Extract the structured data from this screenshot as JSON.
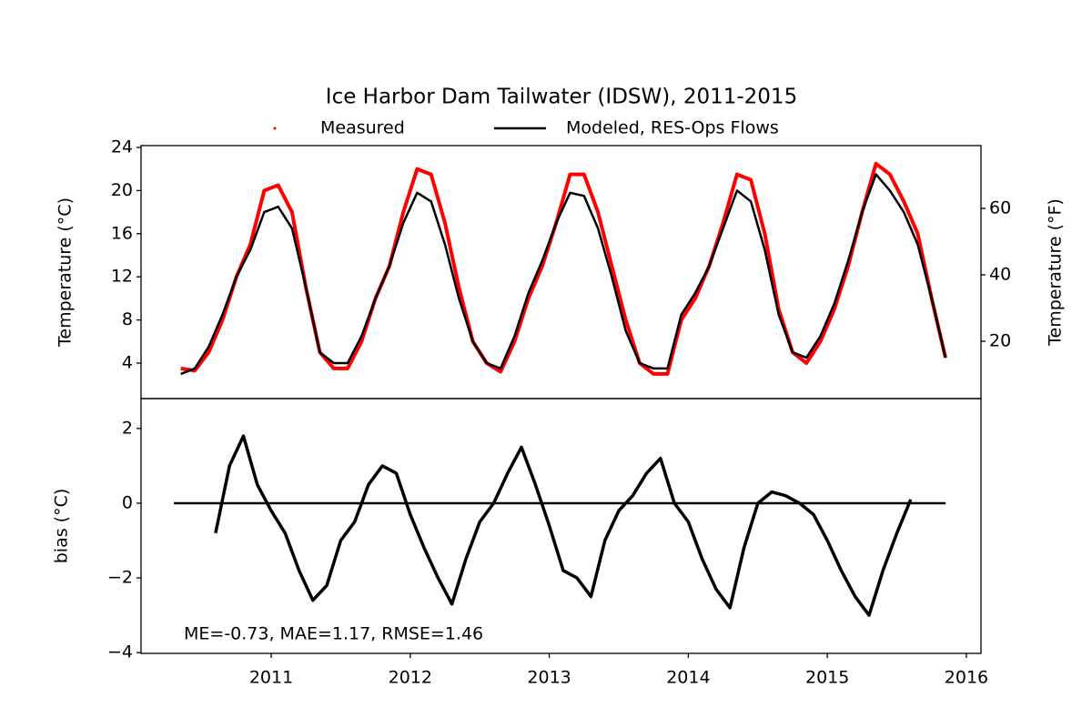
{
  "chart_data": [
    {
      "type": "line",
      "title": "Ice Harbor Dam Tailwater (IDSW), 2011-2015",
      "ylabel": "Temperature (°C)",
      "y2label": "Temperature (°F)",
      "xlim": [
        2010.064,
        2016.105
      ],
      "ylim": [
        0.71,
        24.17
      ],
      "yticks": [
        4,
        8,
        12,
        16,
        20,
        24
      ],
      "y2lim": [
        2.74,
        78.9
      ],
      "y2ticks": [
        20,
        40,
        60
      ],
      "x": [
        2010.35,
        2010.45,
        2010.55,
        2010.65,
        2010.75,
        2010.85,
        2010.95,
        2011.05,
        2011.15,
        2011.25,
        2011.35,
        2011.45,
        2011.55,
        2011.65,
        2011.75,
        2011.85,
        2011.95,
        2012.05,
        2012.15,
        2012.25,
        2012.35,
        2012.45,
        2012.55,
        2012.65,
        2012.75,
        2012.85,
        2012.95,
        2013.05,
        2013.15,
        2013.25,
        2013.35,
        2013.45,
        2013.55,
        2013.65,
        2013.75,
        2013.85,
        2013.95,
        2014.05,
        2014.15,
        2014.25,
        2014.35,
        2014.45,
        2014.55,
        2014.65,
        2014.75,
        2014.85,
        2014.95,
        2015.05,
        2015.15,
        2015.25,
        2015.35,
        2015.45,
        2015.55,
        2015.65,
        2015.75,
        2015.85
      ],
      "series": [
        {
          "name": "Measured",
          "color": "#ff0000",
          "marker": "dot",
          "values": [
            3.5,
            3.3,
            5,
            8,
            12,
            15,
            20,
            20.5,
            18,
            11,
            5,
            3.5,
            3.5,
            6,
            10,
            13,
            18,
            22,
            21.5,
            17,
            11,
            6,
            4,
            3.2,
            6,
            10,
            13,
            17,
            21.5,
            21.5,
            18,
            13,
            8,
            4,
            3,
            3,
            8,
            10,
            13,
            17,
            21.5,
            21,
            16,
            9,
            5,
            4,
            6,
            9,
            13,
            18,
            22.5,
            21.5,
            19,
            16,
            10,
            4.5
          ]
        },
        {
          "name": "Modeled, RES-Ops Flows",
          "color": "#000000",
          "marker": "line",
          "values": [
            3,
            3.5,
            5.5,
            8.5,
            12,
            14.5,
            18,
            18.5,
            16.5,
            11,
            5,
            4,
            4,
            6.5,
            10,
            13,
            17,
            19.8,
            19,
            15,
            10,
            6,
            4,
            3.5,
            6.5,
            10.5,
            13.5,
            17,
            19.8,
            19.5,
            16.5,
            12,
            7,
            4,
            3.5,
            3.5,
            8.5,
            10.5,
            13,
            16.5,
            20,
            19,
            14.5,
            8.5,
            5,
            4.5,
            6.5,
            9.5,
            13.5,
            18,
            21.5,
            20,
            18,
            15,
            10,
            4.5
          ]
        }
      ]
    },
    {
      "type": "line",
      "ylabel": "bias (°C)",
      "annotation": "ME=-0.73, MAE=1.17, RMSE=1.46",
      "xlim": [
        2010.064,
        2016.105
      ],
      "xticks": [
        2011,
        2012,
        2013,
        2014,
        2015,
        2016
      ],
      "ylim": [
        -4.02,
        2.8
      ],
      "yticks": [
        {
          "value": -4,
          "label": "−4"
        },
        {
          "value": -2,
          "label": "−2"
        },
        0,
        2
      ],
      "reference_line": {
        "value": 0,
        "x": [
          2010.3,
          2015.85
        ]
      },
      "x": [
        2010.6,
        2010.7,
        2010.8,
        2010.9,
        2011.0,
        2011.1,
        2011.2,
        2011.3,
        2011.4,
        2011.5,
        2011.6,
        2011.7,
        2011.8,
        2011.9,
        2012.0,
        2012.1,
        2012.2,
        2012.3,
        2012.4,
        2012.5,
        2012.6,
        2012.7,
        2012.8,
        2012.9,
        2013.0,
        2013.1,
        2013.2,
        2013.3,
        2013.4,
        2013.5,
        2013.6,
        2013.7,
        2013.8,
        2013.9,
        2014.0,
        2014.1,
        2014.2,
        2014.3,
        2014.4,
        2014.5,
        2014.6,
        2014.7,
        2014.8,
        2014.9,
        2015.0,
        2015.1,
        2015.2,
        2015.3,
        2015.4,
        2015.5,
        2015.6
      ],
      "series": [
        {
          "color": "#000000",
          "values": [
            -0.8,
            1.0,
            1.8,
            0.5,
            -0.2,
            -0.8,
            -1.8,
            -2.6,
            -2.2,
            -1.0,
            -0.5,
            0.5,
            1.0,
            0.8,
            -0.3,
            -1.2,
            -2.0,
            -2.7,
            -1.5,
            -0.5,
            0,
            0.8,
            1.5,
            0.5,
            -0.6,
            -1.8,
            -2.0,
            -2.5,
            -1.0,
            -0.2,
            0.2,
            0.8,
            1.2,
            0,
            -0.5,
            -1.5,
            -2.3,
            -2.8,
            -1.2,
            0,
            0.3,
            0.2,
            0,
            -0.3,
            -1.0,
            -1.8,
            -2.5,
            -3.0,
            -1.8,
            -0.8,
            0.1
          ]
        }
      ]
    }
  ]
}
